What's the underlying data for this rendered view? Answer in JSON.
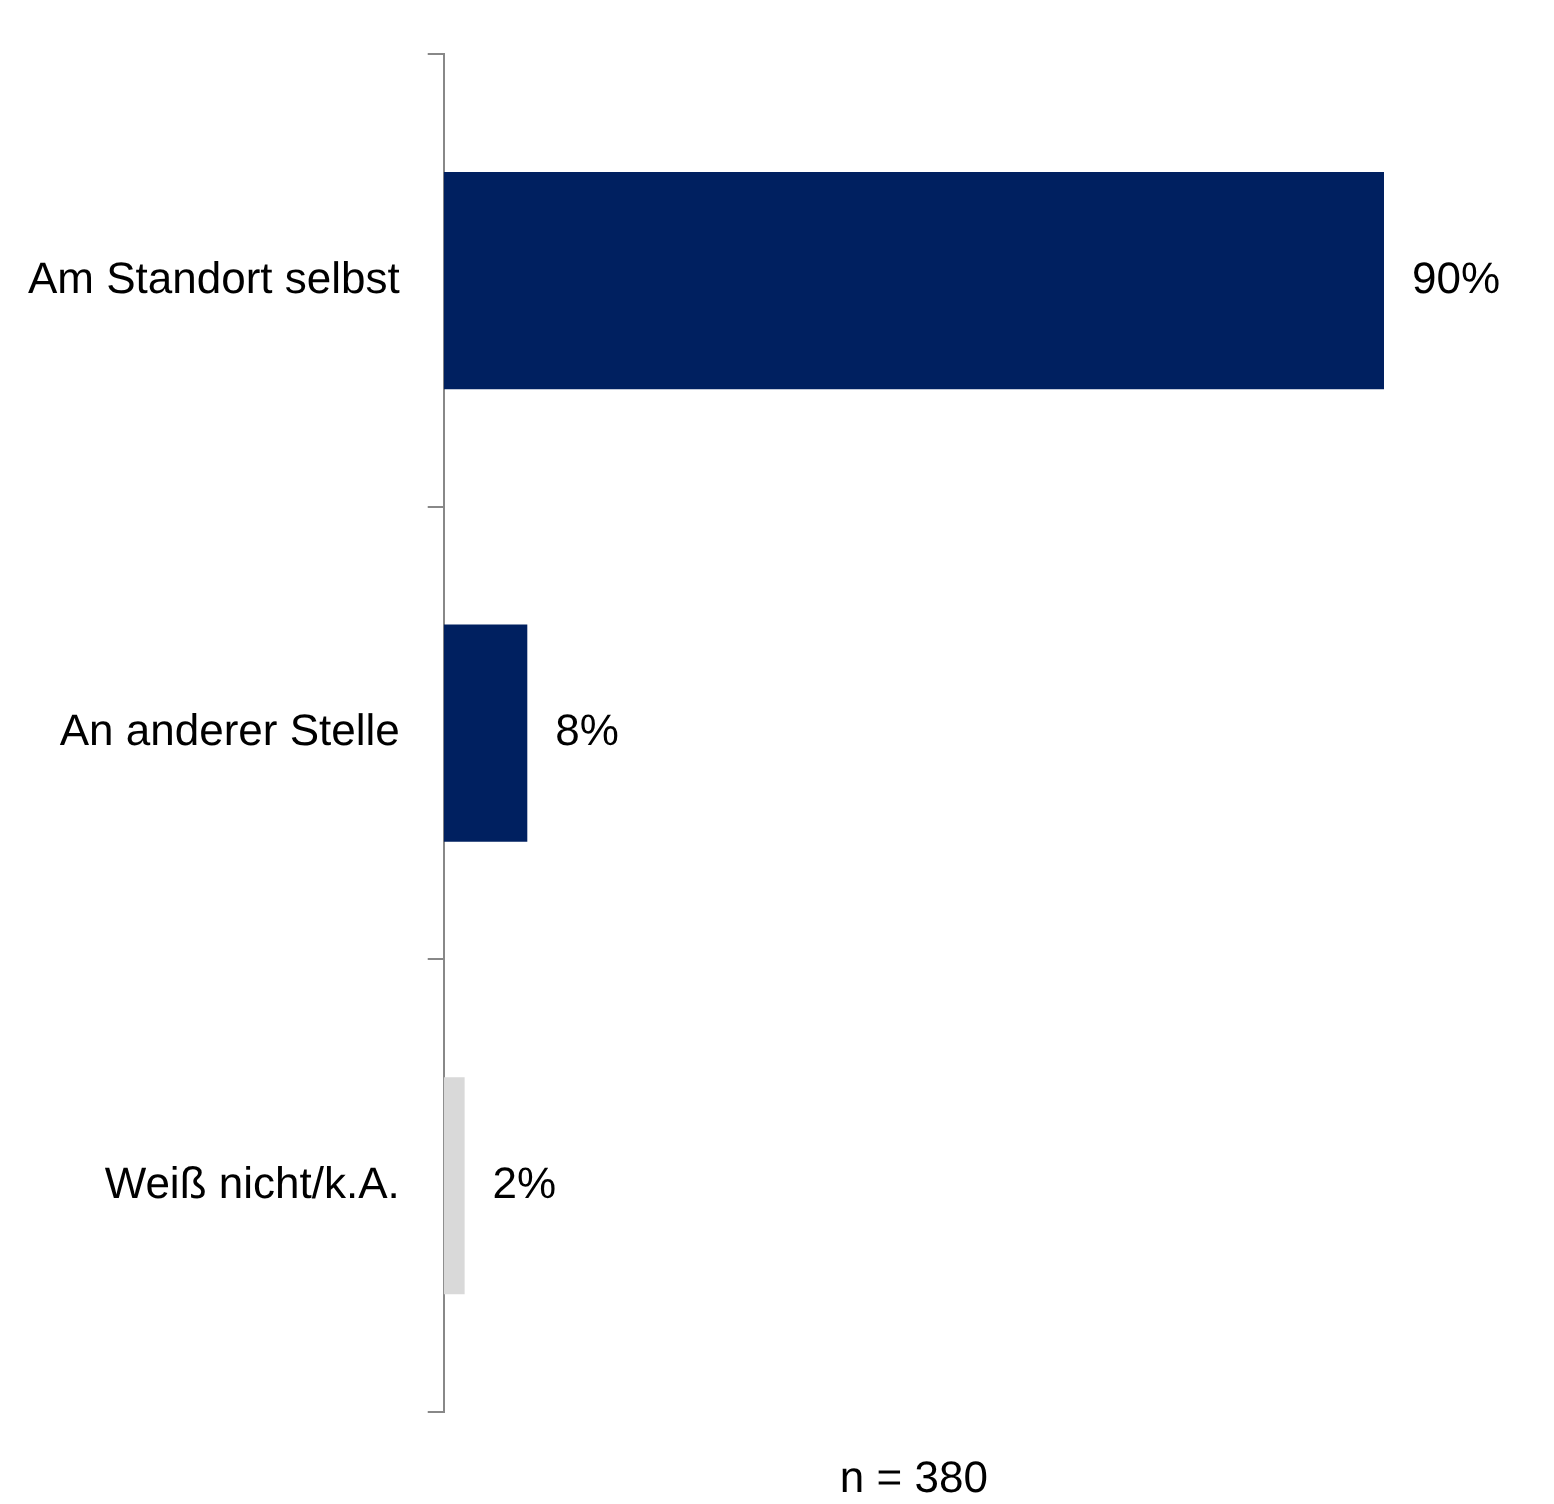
{
  "chart_data": {
    "type": "bar",
    "orientation": "horizontal",
    "categories": [
      "Am Standort selbst",
      "An anderer Stelle",
      "Weiß nicht/k.A."
    ],
    "values": [
      90,
      8,
      2
    ],
    "value_labels": [
      "90%",
      "8%",
      "2%"
    ],
    "colors": [
      "#002060",
      "#002060",
      "#d9d9d9"
    ],
    "annotations": [
      "n = 380"
    ]
  }
}
